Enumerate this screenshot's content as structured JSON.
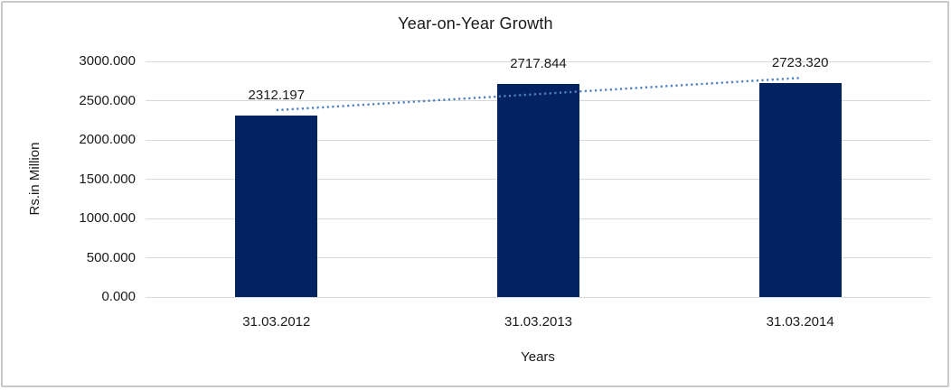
{
  "chart_data": {
    "type": "bar",
    "title": "Year-on-Year Growth",
    "xlabel": "Years",
    "ylabel": "Rs.in Million",
    "categories": [
      "31.03.2012",
      "31.03.2013",
      "31.03.2014"
    ],
    "values": [
      2312.197,
      2717.844,
      2723.32
    ],
    "data_labels": [
      "2312.197",
      "2717.844",
      "2723.320"
    ],
    "ylim": [
      0,
      3000
    ],
    "ytick_values": [
      0,
      500,
      1000,
      1500,
      2000,
      2500,
      3000
    ],
    "ytick_labels": [
      "0.000",
      "500.000",
      "1000.000",
      "1500.000",
      "2000.000",
      "2500.000",
      "3000.000"
    ],
    "grid": true,
    "legend": "none",
    "trendline": {
      "type": "linear",
      "style": "dotted",
      "color": "#4f81bd"
    },
    "colors": {
      "bar": "#02235f",
      "gridline": "#d9d9d9",
      "frame_border": "#c9c9c9",
      "text": "#1a1a1a",
      "background": "#ffffff"
    }
  }
}
